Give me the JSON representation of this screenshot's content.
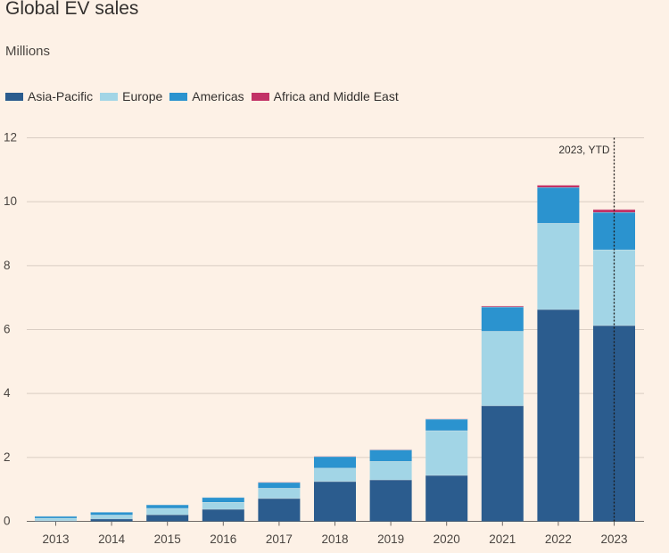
{
  "chart_data": {
    "type": "bar",
    "stacked": true,
    "title": "Global EV sales",
    "subtitle": "Millions",
    "categories": [
      "2013",
      "2014",
      "2015",
      "2016",
      "2017",
      "2018",
      "2019",
      "2020",
      "2021",
      "2022",
      "2023"
    ],
    "series": [
      {
        "name": "Asia-Pacific",
        "color": "#2b5c8e",
        "values": [
          0.02,
          0.08,
          0.21,
          0.38,
          0.72,
          1.25,
          1.3,
          1.44,
          3.62,
          6.63,
          6.13
        ]
      },
      {
        "name": "Europe",
        "color": "#a2d5e6",
        "values": [
          0.08,
          0.12,
          0.2,
          0.22,
          0.32,
          0.42,
          0.58,
          1.4,
          2.33,
          2.7,
          2.37
        ]
      },
      {
        "name": "Americas",
        "color": "#2b93cf",
        "values": [
          0.06,
          0.09,
          0.11,
          0.15,
          0.18,
          0.36,
          0.36,
          0.36,
          0.76,
          1.12,
          1.17
        ]
      },
      {
        "name": "Africa and Middle East",
        "color": "#c23266",
        "values": [
          0.0,
          0.0,
          0.0,
          0.0,
          0.01,
          0.01,
          0.01,
          0.01,
          0.03,
          0.07,
          0.09
        ]
      }
    ],
    "ylim": [
      0,
      12
    ],
    "yticks": [
      0,
      2,
      4,
      6,
      8,
      10,
      12
    ],
    "annotation": {
      "text": "2023, YTD",
      "category": "2023"
    },
    "legend_position": "top-left"
  }
}
